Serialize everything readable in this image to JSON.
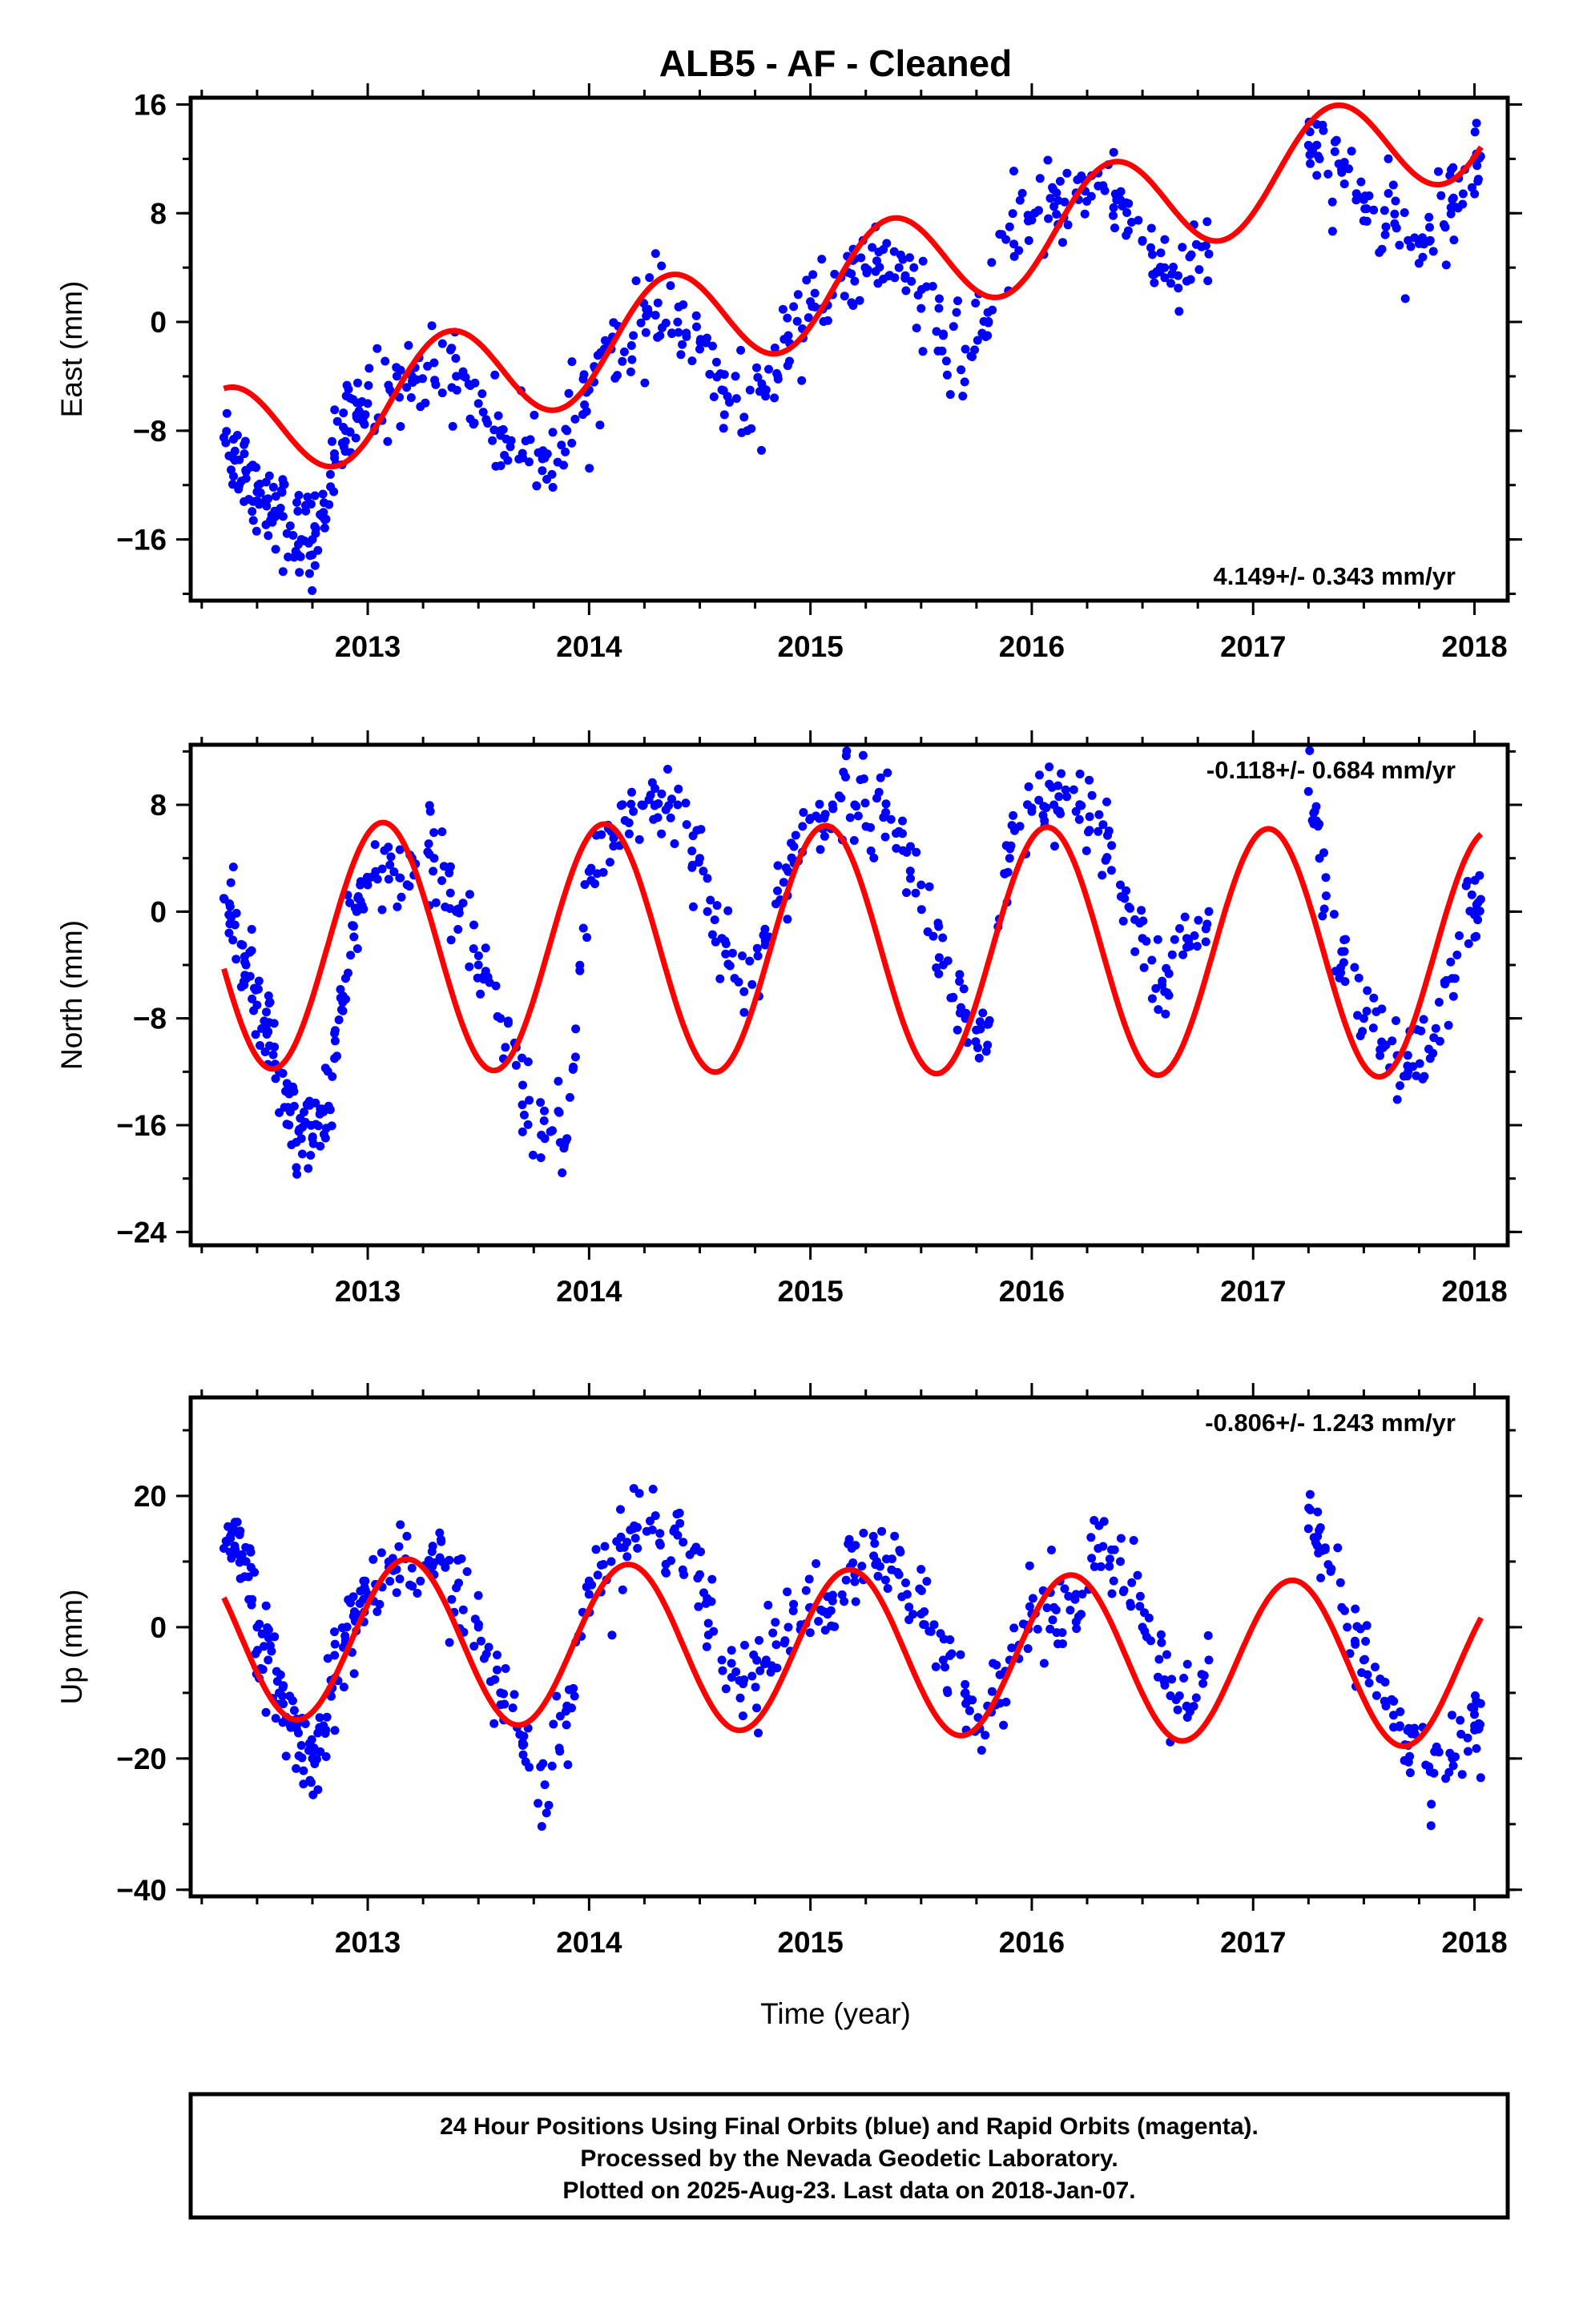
{
  "title": "ALB5  - AF - Cleaned",
  "xlabel": "Time (year)",
  "footer": [
    "24 Hour Positions Using Final Orbits (blue) and Rapid Orbits (magenta).",
    "Processed by the Nevada Geodetic Laboratory.",
    "Plotted on 2025-Aug-23. Last data on 2018-Jan-07."
  ],
  "colors": {
    "points": "#0000ff",
    "fit": "#ff0000",
    "axes": "#000000"
  },
  "chart_data": [
    {
      "type": "scatter",
      "ylabel": "East (mm)",
      "rate_label": "4.149+/- 0.343 mm/yr",
      "rate_position": "bottom-right",
      "xlim": [
        2012.2,
        2018.15
      ],
      "ylim": [
        -20.5,
        16.5
      ],
      "yticks": [
        16,
        8,
        0,
        -8,
        -16
      ],
      "xticks": [
        2013,
        2014,
        2015,
        2016,
        2017,
        2018
      ],
      "series": [
        {
          "kind": "points",
          "x": [
            2012.35,
            2012.4,
            2012.45,
            2012.5,
            2012.55,
            2012.6,
            2012.65,
            2012.7,
            2012.75,
            2012.8,
            2012.85,
            2012.9,
            2012.95,
            2013.0,
            2013.1,
            2013.2,
            2013.3,
            2013.4,
            2013.5,
            2013.6,
            2013.7,
            2013.8,
            2013.9,
            2014.0,
            2014.1,
            2014.2,
            2014.3,
            2014.4,
            2014.5,
            2014.6,
            2014.7,
            2014.8,
            2014.9,
            2015.0,
            2015.1,
            2015.2,
            2015.3,
            2015.4,
            2015.5,
            2015.6,
            2015.7,
            2015.8,
            2015.9,
            2016.0,
            2016.1,
            2016.2,
            2016.3,
            2016.4,
            2016.5,
            2016.6,
            2016.7,
            2016.8,
            2017.25,
            2017.3,
            2017.4,
            2017.5,
            2017.6,
            2017.7,
            2017.8,
            2017.9,
            2018.0
          ],
          "y": [
            -8.5,
            -9.5,
            -11,
            -12.5,
            -13,
            -14,
            -15,
            -16,
            -16,
            -14,
            -10,
            -8,
            -7,
            -6,
            -5,
            -4,
            -3,
            -4,
            -6,
            -8,
            -10,
            -10,
            -8,
            -5,
            -2,
            -1,
            0.5,
            0,
            -2,
            -5,
            -7,
            -5,
            -1,
            1.5,
            2,
            3,
            4.5,
            4,
            1,
            -1,
            -2,
            -1,
            7,
            7.5,
            8.5,
            9.5,
            10,
            9,
            6,
            4,
            3,
            5,
            13,
            12,
            11,
            9,
            7,
            6,
            6,
            9,
            12
          ]
        },
        {
          "kind": "fit",
          "offset": -8.8,
          "rate": 4.149,
          "a_sin": 3.0,
          "a_cos": -2.5,
          "t0": 2012.35,
          "t1": 2018.03
        }
      ]
    },
    {
      "type": "scatter",
      "ylabel": "North (mm)",
      "rate_label": "-0.118+/- 0.684 mm/yr",
      "rate_position": "top-right",
      "xlim": [
        2012.2,
        2018.15
      ],
      "ylim": [
        -25,
        12.5
      ],
      "yticks": [
        8,
        0,
        -8,
        -16,
        -24
      ],
      "xticks": [
        2013,
        2014,
        2015,
        2016,
        2017,
        2018
      ],
      "series": [
        {
          "kind": "points",
          "x": [
            2012.35,
            2012.4,
            2012.45,
            2012.5,
            2012.55,
            2012.6,
            2012.65,
            2012.7,
            2012.75,
            2012.8,
            2012.85,
            2012.9,
            2012.95,
            2013.0,
            2013.1,
            2013.2,
            2013.3,
            2013.4,
            2013.5,
            2013.6,
            2013.7,
            2013.8,
            2013.9,
            2014.0,
            2014.1,
            2014.2,
            2014.3,
            2014.4,
            2014.5,
            2014.6,
            2014.7,
            2014.8,
            2014.9,
            2015.0,
            2015.1,
            2015.2,
            2015.3,
            2015.4,
            2015.5,
            2015.6,
            2015.7,
            2015.8,
            2015.9,
            2016.0,
            2016.1,
            2016.2,
            2016.3,
            2016.4,
            2016.5,
            2016.6,
            2016.7,
            2016.8,
            2017.25,
            2017.3,
            2017.4,
            2017.5,
            2017.6,
            2017.7,
            2017.8,
            2017.9,
            2018.0
          ],
          "y": [
            1,
            -1,
            -4,
            -7,
            -9,
            -12,
            -15,
            -17,
            -17,
            -15,
            -11,
            -5,
            0,
            2,
            3.5,
            4,
            4,
            0,
            -4,
            -8,
            -13,
            -17,
            -17,
            3,
            6,
            7.5,
            8,
            8,
            4,
            -2,
            -6,
            -2,
            3,
            7,
            8,
            8,
            8.5,
            6,
            2,
            -4,
            -8,
            -10,
            4,
            7.5,
            8,
            7.5,
            6,
            2,
            -2,
            -6,
            -2,
            0,
            9,
            4,
            -3,
            -8,
            -10,
            -12,
            -11,
            -5,
            0
          ]
        },
        {
          "kind": "fit",
          "offset": -2.5,
          "rate": -0.118,
          "a_sin": 3.9,
          "a_cos": 8.4,
          "t0": 2012.35,
          "t1": 2018.03
        }
      ]
    },
    {
      "type": "scatter",
      "ylabel": "Up (mm)",
      "rate_label": "-0.806+/- 1.243 mm/yr",
      "rate_position": "top-right",
      "xlim": [
        2012.2,
        2018.15
      ],
      "ylim": [
        -41,
        35
      ],
      "yticks": [
        20,
        0,
        -20,
        -40
      ],
      "xticks": [
        2013,
        2014,
        2015,
        2016,
        2017,
        2018
      ],
      "series": [
        {
          "kind": "points",
          "x": [
            2012.35,
            2012.4,
            2012.45,
            2012.5,
            2012.55,
            2012.6,
            2012.65,
            2012.7,
            2012.75,
            2012.8,
            2012.85,
            2012.9,
            2012.95,
            2013.0,
            2013.1,
            2013.2,
            2013.3,
            2013.4,
            2013.5,
            2013.6,
            2013.7,
            2013.8,
            2013.9,
            2014.0,
            2014.1,
            2014.2,
            2014.3,
            2014.4,
            2014.5,
            2014.6,
            2014.7,
            2014.8,
            2014.9,
            2015.0,
            2015.1,
            2015.2,
            2015.3,
            2015.4,
            2015.5,
            2015.6,
            2015.7,
            2015.8,
            2015.9,
            2016.0,
            2016.1,
            2016.2,
            2016.3,
            2016.4,
            2016.5,
            2016.6,
            2016.7,
            2016.8,
            2017.25,
            2017.3,
            2017.4,
            2017.5,
            2017.6,
            2017.7,
            2017.8,
            2017.9,
            2018.0
          ],
          "y": [
            12,
            16,
            10,
            0,
            -5,
            -10,
            -15,
            -18,
            -20,
            -15,
            -8,
            -2,
            2,
            5,
            7,
            9,
            8,
            6,
            0,
            -10,
            -18,
            -24,
            -12,
            5,
            10,
            15,
            17,
            14,
            8,
            -5,
            -8,
            -5,
            0,
            3,
            4,
            8,
            10,
            8,
            2,
            -5,
            -10,
            -12,
            -5,
            2,
            3,
            5,
            12,
            10,
            0,
            -8,
            -12,
            -5,
            15,
            12,
            3,
            -5,
            -12,
            -18,
            -22,
            -20,
            -15
          ]
        },
        {
          "kind": "fit",
          "offset": -1.4,
          "rate": -0.806,
          "a_sin": 11.2,
          "a_cos": 5.4,
          "t0": 2012.35,
          "t1": 2018.03
        }
      ]
    }
  ]
}
